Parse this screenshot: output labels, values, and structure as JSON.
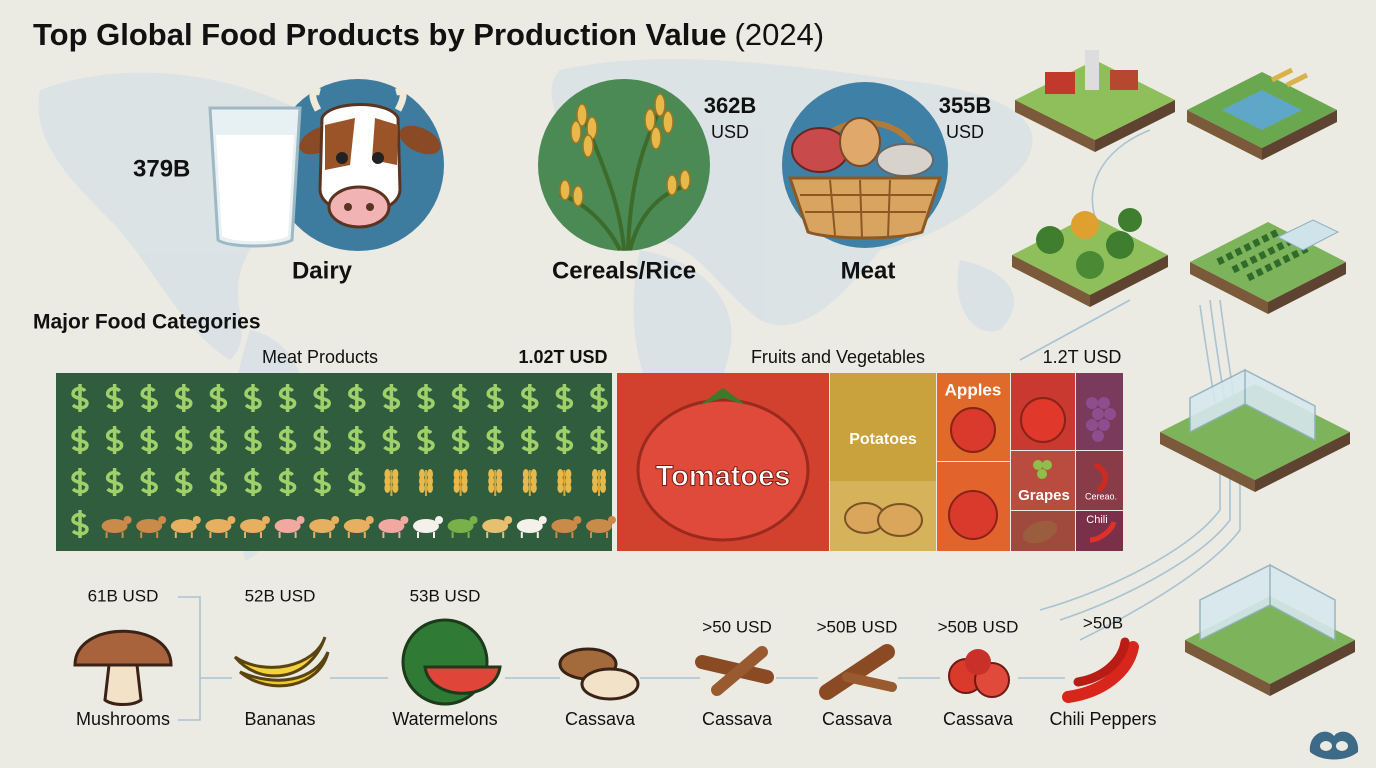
{
  "header": {
    "title": "Top Global Food Products by Production Value",
    "year": "(2024)"
  },
  "featured": [
    {
      "label": "Dairy",
      "value": "379B"
    },
    {
      "label": "Cereals/Rice",
      "value": "362B",
      "unit": "USD"
    },
    {
      "label": "Meat",
      "value": "355B",
      "unit": "USD"
    }
  ],
  "categories": {
    "title": "Major Food Categories",
    "meat": {
      "label": "Meat Products",
      "total": "1.02T USD"
    },
    "produce": {
      "label": "Fruits and Vegetables",
      "total": "1.2T USD",
      "cells": [
        "Tomatoes",
        "Potatoes",
        "Apples",
        "Grapes",
        "Cereao.",
        "Chili"
      ]
    }
  },
  "products": [
    {
      "value": "61B USD",
      "name": "Mushrooms"
    },
    {
      "value": "52B USD",
      "name": "Bananas"
    },
    {
      "value": "53B USD",
      "name": "Watermelons"
    },
    {
      "name": "Cassava"
    },
    {
      "value": ">50 USD",
      "name": "Cassava"
    },
    {
      "value": ">50B USD",
      "name": "Cassava"
    },
    {
      "value": ">50B USD",
      "name": "Cassava"
    },
    {
      "value": ">50B",
      "name": "Chili Peppers"
    }
  ]
}
